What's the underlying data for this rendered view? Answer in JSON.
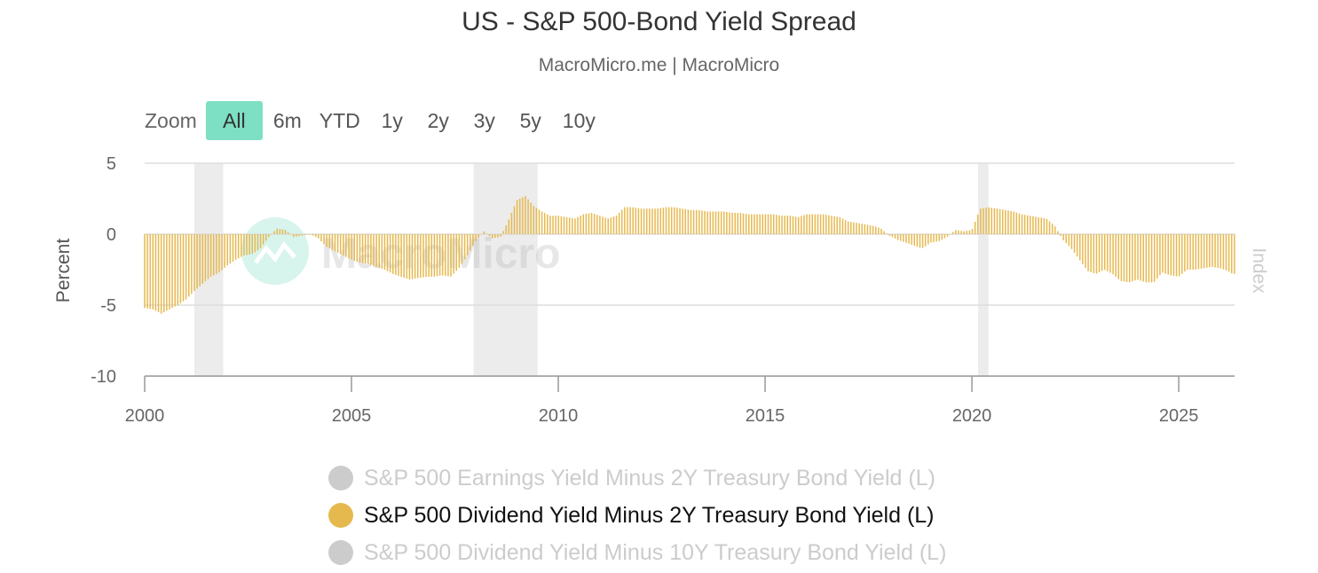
{
  "title": "US - S&P 500-Bond Yield Spread",
  "subtitle": "MacroMicro.me | MacroMicro",
  "watermark": "MacroMicro",
  "zoom": {
    "label": "Zoom",
    "buttons": [
      "All",
      "6m",
      "YTD",
      "1y",
      "2y",
      "3y",
      "5y",
      "10y"
    ],
    "active": "All"
  },
  "legend": [
    {
      "label": "S&P 500 Earnings Yield Minus 2Y Treasury Bond Yield (L)",
      "visible": false,
      "color": "#cccccc"
    },
    {
      "label": "S&P 500 Dividend Yield Minus 2Y Treasury Bond Yield (L)",
      "visible": true,
      "color": "#e6b94f"
    },
    {
      "label": "S&P 500 Dividend Yield Minus 10Y Treasury Bond Yield (L)",
      "visible": false,
      "color": "#cccccc"
    }
  ],
  "colors": {
    "bar": "#e6b94f",
    "recession": "#ececec",
    "grid": "#dddddd",
    "axis": "#999999",
    "active_zoom": "#7ddfc3"
  },
  "chart_data": {
    "type": "bar",
    "ylabel": "Percent",
    "ylabel_right": "Index",
    "xlim": [
      2000,
      2026.35
    ],
    "ylim": [
      -10,
      5
    ],
    "yticks": [
      5,
      0,
      -5,
      -10
    ],
    "xticks": [
      2000,
      2005,
      2010,
      2015,
      2020,
      2025
    ],
    "grid": true,
    "recessions": [
      [
        2001.2,
        2001.9
      ],
      [
        2007.95,
        2009.5
      ],
      [
        2020.15,
        2020.4
      ]
    ],
    "series": [
      {
        "name": "S&P 500 Dividend Yield Minus 2Y Treasury Bond Yield (L)",
        "points": [
          [
            2000.0,
            -5.2
          ],
          [
            2000.2,
            -5.3
          ],
          [
            2000.4,
            -5.6
          ],
          [
            2000.6,
            -5.3
          ],
          [
            2000.8,
            -5.0
          ],
          [
            2001.0,
            -4.6
          ],
          [
            2001.2,
            -4.0
          ],
          [
            2001.4,
            -3.5
          ],
          [
            2001.6,
            -3.0
          ],
          [
            2001.8,
            -2.7
          ],
          [
            2002.0,
            -2.2
          ],
          [
            2002.2,
            -1.8
          ],
          [
            2002.4,
            -1.5
          ],
          [
            2002.6,
            -1.4
          ],
          [
            2002.8,
            -1.0
          ],
          [
            2003.0,
            -0.2
          ],
          [
            2003.2,
            0.4
          ],
          [
            2003.4,
            0.3
          ],
          [
            2003.6,
            -0.2
          ],
          [
            2003.8,
            -0.1
          ],
          [
            2004.0,
            0.0
          ],
          [
            2004.2,
            -0.3
          ],
          [
            2004.4,
            -0.9
          ],
          [
            2004.6,
            -1.2
          ],
          [
            2004.8,
            -1.5
          ],
          [
            2005.0,
            -1.8
          ],
          [
            2005.2,
            -2.0
          ],
          [
            2005.4,
            -2.1
          ],
          [
            2005.6,
            -2.3
          ],
          [
            2005.8,
            -2.5
          ],
          [
            2006.0,
            -2.8
          ],
          [
            2006.2,
            -3.0
          ],
          [
            2006.4,
            -3.2
          ],
          [
            2006.6,
            -3.1
          ],
          [
            2006.8,
            -3.0
          ],
          [
            2007.0,
            -3.0
          ],
          [
            2007.2,
            -2.9
          ],
          [
            2007.4,
            -3.0
          ],
          [
            2007.6,
            -2.4
          ],
          [
            2007.8,
            -1.5
          ],
          [
            2008.0,
            -0.5
          ],
          [
            2008.2,
            0.2
          ],
          [
            2008.4,
            -0.3
          ],
          [
            2008.6,
            -0.2
          ],
          [
            2008.8,
            1.0
          ],
          [
            2009.0,
            2.4
          ],
          [
            2009.2,
            2.7
          ],
          [
            2009.4,
            2.0
          ],
          [
            2009.6,
            1.6
          ],
          [
            2009.8,
            1.3
          ],
          [
            2010.0,
            1.3
          ],
          [
            2010.2,
            1.2
          ],
          [
            2010.4,
            1.1
          ],
          [
            2010.6,
            1.4
          ],
          [
            2010.8,
            1.5
          ],
          [
            2011.0,
            1.3
          ],
          [
            2011.2,
            1.1
          ],
          [
            2011.4,
            1.3
          ],
          [
            2011.6,
            1.9
          ],
          [
            2011.8,
            1.9
          ],
          [
            2012.0,
            1.8
          ],
          [
            2012.2,
            1.8
          ],
          [
            2012.4,
            1.8
          ],
          [
            2012.6,
            1.9
          ],
          [
            2012.8,
            1.9
          ],
          [
            2013.0,
            1.8
          ],
          [
            2013.2,
            1.7
          ],
          [
            2013.4,
            1.7
          ],
          [
            2013.6,
            1.6
          ],
          [
            2013.8,
            1.6
          ],
          [
            2014.0,
            1.6
          ],
          [
            2014.2,
            1.5
          ],
          [
            2014.4,
            1.5
          ],
          [
            2014.6,
            1.4
          ],
          [
            2014.8,
            1.4
          ],
          [
            2015.0,
            1.4
          ],
          [
            2015.2,
            1.4
          ],
          [
            2015.4,
            1.3
          ],
          [
            2015.6,
            1.3
          ],
          [
            2015.8,
            1.2
          ],
          [
            2016.0,
            1.4
          ],
          [
            2016.2,
            1.4
          ],
          [
            2016.4,
            1.4
          ],
          [
            2016.6,
            1.3
          ],
          [
            2016.8,
            1.2
          ],
          [
            2017.0,
            0.9
          ],
          [
            2017.2,
            0.8
          ],
          [
            2017.4,
            0.7
          ],
          [
            2017.6,
            0.6
          ],
          [
            2017.8,
            0.4
          ],
          [
            2018.0,
            -0.1
          ],
          [
            2018.2,
            -0.4
          ],
          [
            2018.4,
            -0.6
          ],
          [
            2018.6,
            -0.8
          ],
          [
            2018.8,
            -1.0
          ],
          [
            2019.0,
            -0.6
          ],
          [
            2019.2,
            -0.5
          ],
          [
            2019.4,
            -0.2
          ],
          [
            2019.6,
            0.3
          ],
          [
            2019.8,
            0.2
          ],
          [
            2020.0,
            0.3
          ],
          [
            2020.2,
            1.8
          ],
          [
            2020.4,
            1.9
          ],
          [
            2020.6,
            1.8
          ],
          [
            2020.8,
            1.7
          ],
          [
            2021.0,
            1.6
          ],
          [
            2021.2,
            1.4
          ],
          [
            2021.4,
            1.3
          ],
          [
            2021.6,
            1.2
          ],
          [
            2021.8,
            1.1
          ],
          [
            2022.0,
            0.6
          ],
          [
            2022.2,
            -0.4
          ],
          [
            2022.4,
            -1.0
          ],
          [
            2022.6,
            -1.8
          ],
          [
            2022.8,
            -2.6
          ],
          [
            2023.0,
            -2.8
          ],
          [
            2023.2,
            -2.5
          ],
          [
            2023.4,
            -2.8
          ],
          [
            2023.6,
            -3.3
          ],
          [
            2023.8,
            -3.4
          ],
          [
            2024.0,
            -3.2
          ],
          [
            2024.2,
            -3.4
          ],
          [
            2024.4,
            -3.4
          ],
          [
            2024.6,
            -2.7
          ],
          [
            2024.8,
            -2.9
          ],
          [
            2025.0,
            -3.0
          ],
          [
            2025.2,
            -2.5
          ],
          [
            2025.4,
            -2.5
          ],
          [
            2025.6,
            -2.4
          ],
          [
            2025.8,
            -2.3
          ],
          [
            2026.0,
            -2.4
          ],
          [
            2026.2,
            -2.6
          ],
          [
            2026.3,
            -2.8
          ]
        ]
      }
    ]
  }
}
